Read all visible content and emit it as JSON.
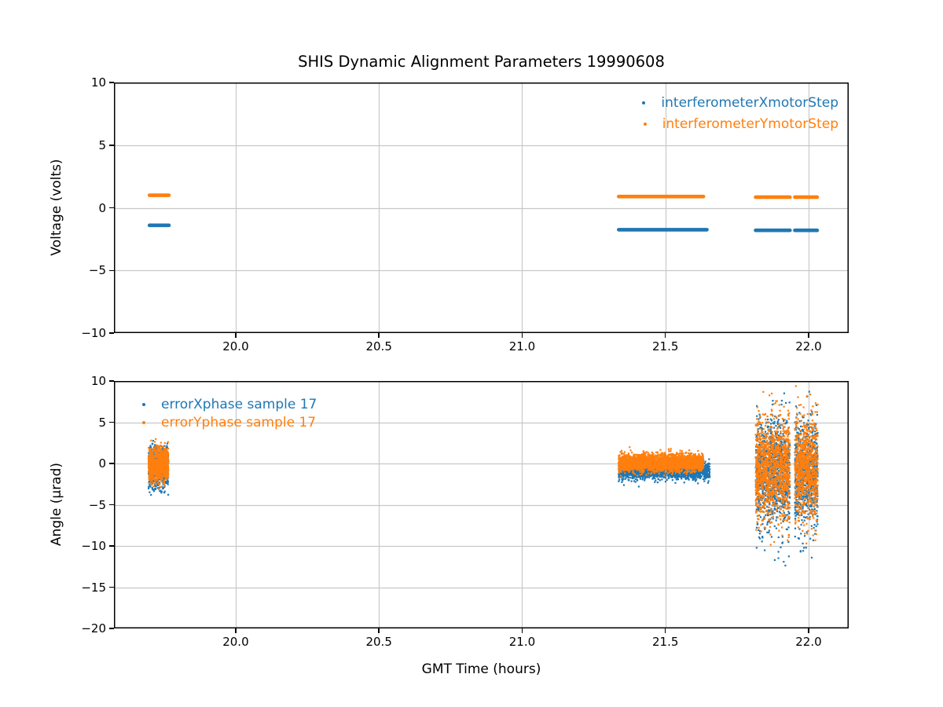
{
  "figure_title": "SHIS Dynamic Alignment Parameters 19990608",
  "colors": {
    "series_blue": "#1f77b4",
    "series_orange": "#ff7f0e",
    "grid": "#c8c8c8",
    "spine": "#000000",
    "text": "#000000",
    "background": "#ffffff"
  },
  "chart_data": [
    {
      "type": "scatter",
      "title": "SHIS Dynamic Alignment Parameters 19990608",
      "xlabel": "",
      "ylabel": "Voltage (volts)",
      "xlim": [
        19.575,
        22.14
      ],
      "ylim": [
        -10,
        10
      ],
      "grid": true,
      "legend_position": "upper right",
      "xticks": [
        {
          "v": 20.0,
          "label": "20.0"
        },
        {
          "v": 20.5,
          "label": "20.5"
        },
        {
          "v": 21.0,
          "label": "21.0"
        },
        {
          "v": 21.5,
          "label": "21.5"
        },
        {
          "v": 22.0,
          "label": "22.0"
        }
      ],
      "yticks": [
        {
          "v": 10,
          "label": "10"
        },
        {
          "v": 5,
          "label": "5"
        },
        {
          "v": 0,
          "label": "0"
        },
        {
          "v": -5,
          "label": "−5"
        },
        {
          "v": -10,
          "label": "−10"
        }
      ],
      "series": [
        {
          "name": "interferometerXmotorStep",
          "color": "#1f77b4",
          "marker": "dot",
          "segments": [
            {
              "x0": 19.699,
              "x1": 19.767,
              "y": -1.4
            },
            {
              "x0": 21.337,
              "x1": 21.645,
              "y": -1.75
            },
            {
              "x0": 21.815,
              "x1": 21.935,
              "y": -1.8
            },
            {
              "x0": 21.952,
              "x1": 22.03,
              "y": -1.8
            }
          ]
        },
        {
          "name": "interferometerYmotorStep",
          "color": "#ff7f0e",
          "marker": "dot",
          "segments": [
            {
              "x0": 19.699,
              "x1": 19.767,
              "y": 1.0
            },
            {
              "x0": 21.337,
              "x1": 21.633,
              "y": 0.9
            },
            {
              "x0": 21.815,
              "x1": 21.935,
              "y": 0.85
            },
            {
              "x0": 21.952,
              "x1": 22.03,
              "y": 0.85
            }
          ]
        }
      ]
    },
    {
      "type": "scatter",
      "title": "",
      "xlabel": "GMT Time (hours)",
      "ylabel": "Angle (μrad)",
      "xlim": [
        19.575,
        22.14
      ],
      "ylim": [
        -20,
        10
      ],
      "grid": true,
      "legend_position": "upper left",
      "xticks": [
        {
          "v": 20.0,
          "label": "20.0"
        },
        {
          "v": 20.5,
          "label": "20.5"
        },
        {
          "v": 21.0,
          "label": "21.0"
        },
        {
          "v": 21.5,
          "label": "21.5"
        },
        {
          "v": 22.0,
          "label": "22.0"
        }
      ],
      "yticks": [
        {
          "v": 10,
          "label": "10"
        },
        {
          "v": 5,
          "label": "5"
        },
        {
          "v": 0,
          "label": "0"
        },
        {
          "v": -5,
          "label": "−5"
        },
        {
          "v": -10,
          "label": "−10"
        },
        {
          "v": -15,
          "label": "−15"
        },
        {
          "v": -20,
          "label": "−20"
        }
      ],
      "series": [
        {
          "name": "errorXphase sample 17",
          "color": "#1f77b4",
          "marker": "dot",
          "clusters": [
            {
              "x0": 19.696,
              "x1": 19.765,
              "n": 650,
              "mean": -0.5,
              "std": 1.3,
              "ymin": -3.9,
              "ymax": 2.8,
              "seed": 11
            },
            {
              "x0": 21.337,
              "x1": 21.655,
              "n": 2000,
              "mean": -0.85,
              "std": 0.5,
              "tail_frac": 0.03,
              "tail_std": 1.3,
              "ymin": -3.2,
              "ymax": 1.2,
              "seed": 12
            },
            {
              "x0": 21.815,
              "x1": 21.935,
              "n": 1100,
              "mean": -1.0,
              "std": 3.0,
              "tail_frac": 0.1,
              "tail_std": 5.2,
              "ymin": -12.6,
              "ymax": 9.6,
              "seed": 13
            },
            {
              "x0": 21.952,
              "x1": 22.032,
              "n": 800,
              "mean": -1.0,
              "std": 3.0,
              "tail_frac": 0.1,
              "tail_std": 5.2,
              "ymin": -12.6,
              "ymax": 9.6,
              "seed": 14
            }
          ]
        },
        {
          "name": "errorYphase sample 17",
          "color": "#ff7f0e",
          "marker": "dot",
          "clusters": [
            {
              "x0": 19.696,
              "x1": 19.765,
              "n": 900,
              "mean": -0.15,
              "std": 1.05,
              "ymin": -3.3,
              "ymax": 3.0,
              "seed": 21
            },
            {
              "x0": 21.337,
              "x1": 21.633,
              "n": 2800,
              "mean": 0.1,
              "std": 0.5,
              "tail_frac": 0.02,
              "tail_std": 1.1,
              "ymin": -1.6,
              "ymax": 2.2,
              "seed": 22
            },
            {
              "x0": 21.815,
              "x1": 21.935,
              "n": 1300,
              "mean": -0.8,
              "std": 2.8,
              "tail_frac": 0.07,
              "tail_std": 4.6,
              "ymin": -10.8,
              "ymax": 9.4,
              "seed": 23
            },
            {
              "x0": 21.952,
              "x1": 22.032,
              "n": 900,
              "mean": -0.8,
              "std": 2.8,
              "tail_frac": 0.07,
              "tail_std": 4.6,
              "ymin": -10.8,
              "ymax": 9.4,
              "seed": 24
            }
          ]
        }
      ]
    }
  ]
}
